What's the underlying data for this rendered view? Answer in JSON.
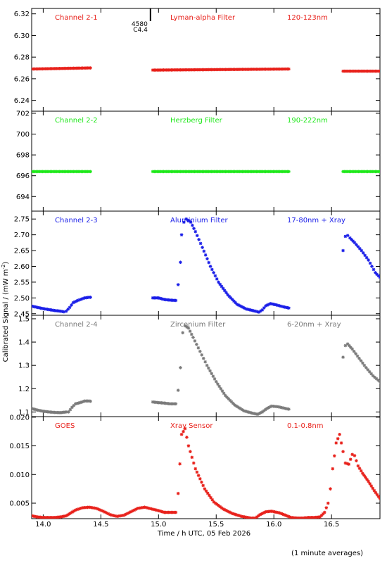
{
  "figure": {
    "ylabel": "Calibrated Signal / (mW m",
    "ylabel_sup": "-2",
    "ylabel_close": ")",
    "xlabel": "Time / h UTC, 05 Feb 2026",
    "footnote": "(1 minute averages)",
    "xlim": [
      13.9,
      16.92
    ],
    "xticks": [
      14.0,
      14.5,
      15.0,
      15.5,
      16.0,
      16.5
    ],
    "xtick_labels": [
      "14.0",
      "14.5",
      "15.0",
      "15.5",
      "16.0",
      "16.5"
    ],
    "flare": {
      "x": 14.93,
      "label1": "4580",
      "label2": "C4.4"
    }
  },
  "chart_data": [
    {
      "type": "scatter",
      "channel": "Channel 2-1",
      "filter": "Lyman-alpha Filter",
      "band": "120-123nm",
      "color": "#e8201a",
      "ylim": [
        6.23,
        6.325
      ],
      "yticks": [
        6.24,
        6.26,
        6.28,
        6.3,
        6.32
      ],
      "ytick_labels": [
        "6.24",
        "6.26",
        "6.28",
        "6.30",
        "6.32"
      ],
      "segments": [
        {
          "x": [
            13.9,
            14.41
          ],
          "y": [
            6.269,
            6.27
          ]
        },
        {
          "x": [
            14.95,
            16.13
          ],
          "y": [
            6.268,
            6.269
          ]
        },
        {
          "x": [
            16.6,
            16.92
          ],
          "y": [
            6.267,
            6.267
          ]
        }
      ]
    },
    {
      "type": "scatter",
      "channel": "Channel 2-2",
      "filter": "Herzberg Filter",
      "band": "190-222nm",
      "color": "#1ee81a",
      "ylim": [
        692.6,
        702.2
      ],
      "yticks": [
        694,
        696,
        698,
        700,
        702
      ],
      "ytick_labels": [
        "694",
        "696",
        "698",
        "700",
        "702"
      ],
      "segments": [
        {
          "x": [
            13.9,
            14.41
          ],
          "y": [
            696.4,
            696.4
          ]
        },
        {
          "x": [
            14.95,
            16.13
          ],
          "y": [
            696.4,
            696.4
          ]
        },
        {
          "x": [
            16.6,
            16.92
          ],
          "y": [
            696.4,
            696.4
          ]
        }
      ]
    },
    {
      "type": "scatter",
      "channel": "Channel 2-3",
      "filter": "Aluminium Filter",
      "band": "17-80nm + Xray",
      "color": "#1a1ee8",
      "ylim": [
        2.445,
        2.775
      ],
      "yticks": [
        2.45,
        2.5,
        2.55,
        2.6,
        2.65,
        2.7,
        2.75
      ],
      "ytick_labels": [
        "2.45",
        "2.50",
        "2.55",
        "2.60",
        "2.65",
        "2.70",
        "2.75"
      ],
      "points": [
        [
          13.9,
          2.474
        ],
        [
          13.95,
          2.47
        ],
        [
          14.0,
          2.466
        ],
        [
          14.05,
          2.463
        ],
        [
          14.1,
          2.46
        ],
        [
          14.15,
          2.458
        ],
        [
          14.18,
          2.456
        ],
        [
          14.2,
          2.458
        ],
        [
          14.23,
          2.47
        ],
        [
          14.26,
          2.485
        ],
        [
          14.3,
          2.492
        ],
        [
          14.33,
          2.496
        ],
        [
          14.36,
          2.5
        ],
        [
          14.4,
          2.502
        ],
        [
          14.41,
          2.502
        ],
        [
          14.95,
          2.5
        ],
        [
          15.0,
          2.5
        ],
        [
          15.05,
          2.495
        ],
        [
          15.1,
          2.493
        ],
        [
          15.15,
          2.492
        ],
        [
          15.17,
          2.542
        ],
        [
          15.19,
          2.613
        ],
        [
          15.2,
          2.7
        ],
        [
          15.22,
          2.74
        ],
        [
          15.24,
          2.75
        ],
        [
          15.28,
          2.74
        ],
        [
          15.32,
          2.71
        ],
        [
          15.38,
          2.66
        ],
        [
          15.45,
          2.6
        ],
        [
          15.52,
          2.55
        ],
        [
          15.6,
          2.51
        ],
        [
          15.68,
          2.48
        ],
        [
          15.76,
          2.465
        ],
        [
          15.84,
          2.458
        ],
        [
          15.87,
          2.455
        ],
        [
          15.9,
          2.462
        ],
        [
          15.93,
          2.475
        ],
        [
          15.97,
          2.482
        ],
        [
          16.02,
          2.478
        ],
        [
          16.08,
          2.472
        ],
        [
          16.13,
          2.468
        ],
        [
          16.6,
          2.65
        ],
        [
          16.62,
          2.695
        ],
        [
          16.64,
          2.698
        ],
        [
          16.66,
          2.69
        ],
        [
          16.7,
          2.675
        ],
        [
          16.76,
          2.65
        ],
        [
          16.82,
          2.62
        ],
        [
          16.88,
          2.58
        ],
        [
          16.92,
          2.565
        ]
      ]
    },
    {
      "type": "scatter",
      "channel": "Channel 2-4",
      "filter": "Zirconium Filter",
      "band": "6-20nm + Xray",
      "color": "#7a7a7a",
      "ylim": [
        1.08,
        1.515
      ],
      "yticks": [
        1.1,
        1.2,
        1.3,
        1.4,
        1.5
      ],
      "ytick_labels": [
        "1.1",
        "1.2",
        "1.3",
        "1.4",
        "1.5"
      ],
      "points": [
        [
          13.9,
          1.115
        ],
        [
          13.95,
          1.108
        ],
        [
          14.0,
          1.103
        ],
        [
          14.05,
          1.1
        ],
        [
          14.1,
          1.098
        ],
        [
          14.15,
          1.097
        ],
        [
          14.2,
          1.1
        ],
        [
          14.22,
          1.1
        ],
        [
          14.25,
          1.12
        ],
        [
          14.28,
          1.135
        ],
        [
          14.32,
          1.14
        ],
        [
          14.36,
          1.147
        ],
        [
          14.4,
          1.147
        ],
        [
          14.41,
          1.146
        ],
        [
          14.95,
          1.143
        ],
        [
          15.0,
          1.14
        ],
        [
          15.05,
          1.138
        ],
        [
          15.1,
          1.135
        ],
        [
          15.15,
          1.135
        ],
        [
          15.17,
          1.193
        ],
        [
          15.19,
          1.29
        ],
        [
          15.21,
          1.44
        ],
        [
          15.23,
          1.47
        ],
        [
          15.26,
          1.46
        ],
        [
          15.3,
          1.42
        ],
        [
          15.36,
          1.36
        ],
        [
          15.42,
          1.3
        ],
        [
          15.5,
          1.23
        ],
        [
          15.58,
          1.17
        ],
        [
          15.66,
          1.13
        ],
        [
          15.74,
          1.105
        ],
        [
          15.82,
          1.094
        ],
        [
          15.86,
          1.09
        ],
        [
          15.9,
          1.1
        ],
        [
          15.94,
          1.115
        ],
        [
          15.98,
          1.125
        ],
        [
          16.04,
          1.122
        ],
        [
          16.1,
          1.115
        ],
        [
          16.13,
          1.112
        ],
        [
          16.6,
          1.335
        ],
        [
          16.62,
          1.385
        ],
        [
          16.64,
          1.392
        ],
        [
          16.68,
          1.37
        ],
        [
          16.74,
          1.33
        ],
        [
          16.8,
          1.29
        ],
        [
          16.86,
          1.255
        ],
        [
          16.92,
          1.23
        ]
      ]
    },
    {
      "type": "scatter",
      "channel": "GOES",
      "filter": "Xray Sensor",
      "band": "0.1-0.8nm",
      "color": "#e8201a",
      "ylim": [
        0.0023,
        0.0201
      ],
      "yticks": [
        0.005,
        0.01,
        0.015,
        0.02
      ],
      "ytick_labels": [
        "0.005",
        "0.010",
        "0.015",
        "0.020"
      ],
      "points": [
        [
          13.9,
          0.0028
        ],
        [
          13.95,
          0.0026
        ],
        [
          14.0,
          0.0025
        ],
        [
          14.05,
          0.0025
        ],
        [
          14.1,
          0.0025
        ],
        [
          14.15,
          0.0026
        ],
        [
          14.2,
          0.0028
        ],
        [
          14.24,
          0.0033
        ],
        [
          14.28,
          0.0038
        ],
        [
          14.34,
          0.0042
        ],
        [
          14.4,
          0.0043
        ],
        [
          14.46,
          0.0041
        ],
        [
          14.52,
          0.0036
        ],
        [
          14.58,
          0.003
        ],
        [
          14.64,
          0.0027
        ],
        [
          14.7,
          0.0029
        ],
        [
          14.76,
          0.0035
        ],
        [
          14.82,
          0.0041
        ],
        [
          14.88,
          0.0043
        ],
        [
          14.94,
          0.004
        ],
        [
          15.0,
          0.0037
        ],
        [
          15.05,
          0.0034
        ],
        [
          15.1,
          0.0034
        ],
        [
          15.15,
          0.0034
        ],
        [
          15.17,
          0.0067
        ],
        [
          15.2,
          0.017
        ],
        [
          15.23,
          0.018
        ],
        [
          15.26,
          0.015
        ],
        [
          15.32,
          0.011
        ],
        [
          15.4,
          0.0075
        ],
        [
          15.48,
          0.0052
        ],
        [
          15.56,
          0.004
        ],
        [
          15.64,
          0.0032
        ],
        [
          15.72,
          0.0027
        ],
        [
          15.8,
          0.0024
        ],
        [
          15.84,
          0.0024
        ],
        [
          15.88,
          0.003
        ],
        [
          15.93,
          0.0035
        ],
        [
          15.98,
          0.0036
        ],
        [
          16.05,
          0.0033
        ],
        [
          16.1,
          0.0029
        ],
        [
          16.15,
          0.0025
        ],
        [
          16.2,
          0.0024
        ],
        [
          16.25,
          0.0024
        ],
        [
          16.3,
          0.0025
        ],
        [
          16.35,
          0.0025
        ],
        [
          16.4,
          0.0026
        ],
        [
          16.44,
          0.0034
        ],
        [
          16.47,
          0.005
        ],
        [
          16.49,
          0.0075
        ],
        [
          16.51,
          0.011
        ],
        [
          16.54,
          0.0155
        ],
        [
          16.57,
          0.017
        ],
        [
          16.6,
          0.014
        ],
        [
          16.62,
          0.012
        ],
        [
          16.65,
          0.0118
        ],
        [
          16.68,
          0.0135
        ],
        [
          16.7,
          0.0133
        ],
        [
          16.73,
          0.0115
        ],
        [
          16.77,
          0.0102
        ],
        [
          16.82,
          0.0088
        ],
        [
          16.87,
          0.0072
        ],
        [
          16.92,
          0.0058
        ]
      ]
    }
  ]
}
